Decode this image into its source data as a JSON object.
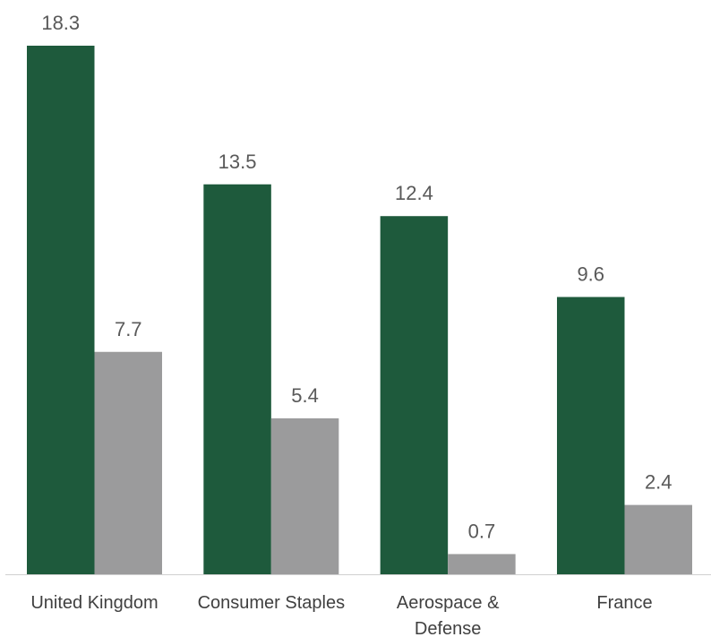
{
  "chart_data": {
    "type": "bar",
    "title": "",
    "xlabel": "",
    "ylabel": "",
    "ylim": [
      0,
      18.3
    ],
    "grid": false,
    "legend": "none",
    "categories": [
      [
        "United Kingdom"
      ],
      [
        "Consumer Staples"
      ],
      [
        "Aerospace &",
        "Defense"
      ],
      [
        "France"
      ]
    ],
    "series": [
      {
        "values": [
          18.3,
          13.5,
          12.4,
          9.6
        ],
        "color": "#1e5a3c"
      },
      {
        "values": [
          7.7,
          5.4,
          0.7,
          2.4
        ],
        "color": "#9b9b9c"
      }
    ],
    "value_labels": [
      [
        "18.3",
        "13.5",
        "12.4",
        "9.6"
      ],
      [
        "7.7",
        "5.4",
        "0.7",
        "2.4"
      ]
    ],
    "axis_color": "#d0d0d0"
  }
}
